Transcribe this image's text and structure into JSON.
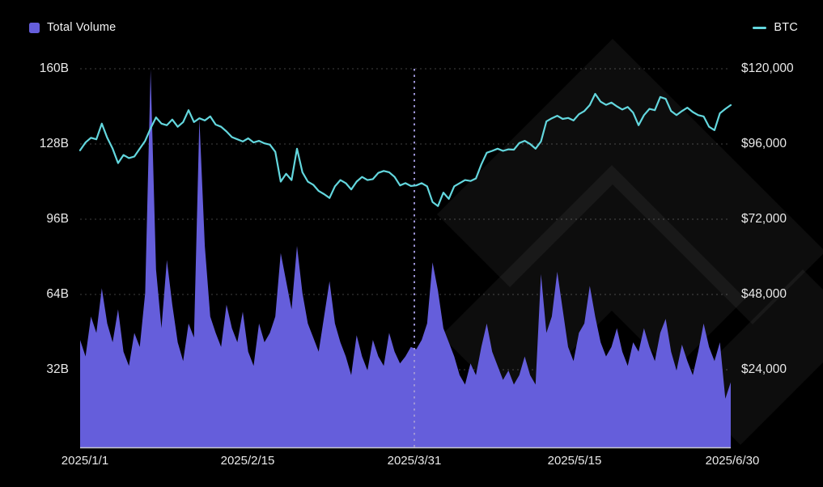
{
  "legend": {
    "volume_label": "Total Volume",
    "btc_label": "BTC"
  },
  "colors": {
    "background": "#000000",
    "volume_fill": "#655EDB",
    "btc_line": "#63D7DE",
    "grid": "rgba(255,255,255,0.26)",
    "marker_line": "#9D94D6",
    "axis_label": "#E9E9E9",
    "baseline": "#C9C9CF",
    "watermark": "rgba(255,255,255,0.05)"
  },
  "watermark": {
    "present": true,
    "description": "diagonal-chevron-logo"
  },
  "chart_data": {
    "type": "mixed",
    "title": "",
    "grid": true,
    "legend_position": "top",
    "x_range": [
      "2025/1/1",
      "2025/6/30"
    ],
    "x_tick_labels": [
      "2025/1/1",
      "2025/2/15",
      "2025/3/31",
      "2025/5/15",
      "2025/6/30"
    ],
    "sampling": "121 points, approx 1.5-day intervals from 2025/1/1 to 2025/6/30",
    "marker": {
      "x_label": "2025/3/31",
      "style": "dotted-vertical-line"
    },
    "left_axis": {
      "series": "Total Volume",
      "unit": "billions USD",
      "ticks": [
        "160B",
        "128B",
        "96B",
        "64B",
        "32B"
      ],
      "tick_values": [
        160,
        128,
        96,
        64,
        32
      ],
      "min": 0,
      "max": 160
    },
    "right_axis": {
      "series": "BTC",
      "unit": "USD",
      "ticks": [
        "$120,000",
        "$96,000",
        "$72,000",
        "$48,000",
        "$24,000"
      ],
      "tick_values": [
        120000,
        96000,
        72000,
        48000,
        24000
      ],
      "min": 0,
      "max": 120000
    },
    "series": [
      {
        "name": "Total Volume",
        "type": "area",
        "axis": "left",
        "unit": "B",
        "values": [
          45,
          38,
          55,
          48,
          67,
          52,
          44,
          58,
          40,
          34,
          48,
          42,
          65,
          160,
          75,
          50,
          79,
          60,
          44,
          36,
          52,
          46,
          139,
          85,
          55,
          48,
          42,
          60,
          50,
          44,
          57,
          40,
          34,
          52,
          44,
          48,
          55,
          82,
          70,
          58,
          85,
          65,
          52,
          46,
          40,
          55,
          70,
          52,
          44,
          38,
          30,
          47,
          38,
          32,
          45,
          38,
          34,
          48,
          40,
          35,
          38,
          42,
          41,
          45,
          52,
          78,
          66,
          50,
          44,
          38,
          30,
          26,
          35,
          30,
          42,
          52,
          40,
          34,
          28,
          32,
          26,
          30,
          38,
          30,
          26,
          73,
          48,
          55,
          74,
          58,
          42,
          36,
          48,
          52,
          68,
          55,
          44,
          38,
          42,
          50,
          40,
          34,
          44,
          40,
          50,
          42,
          36,
          48,
          54,
          40,
          32,
          43,
          36,
          30,
          40,
          52,
          42,
          36,
          44,
          20,
          27
        ]
      },
      {
        "name": "BTC",
        "type": "line",
        "axis": "right",
        "unit": "$",
        "values": [
          94000,
          96500,
          98000,
          97500,
          102500,
          98000,
          94500,
          89900,
          92500,
          91500,
          92000,
          94500,
          97000,
          101000,
          104500,
          102500,
          102000,
          103800,
          101500,
          103000,
          106800,
          103000,
          104200,
          103500,
          104800,
          102200,
          101500,
          100000,
          98200,
          97500,
          96800,
          97800,
          96500,
          97000,
          96200,
          95800,
          93500,
          84000,
          86500,
          84500,
          94500,
          87000,
          84000,
          83000,
          81000,
          80000,
          78800,
          82500,
          84500,
          83500,
          81500,
          84000,
          85500,
          84500,
          84800,
          86800,
          87400,
          87000,
          85500,
          82800,
          83500,
          82600,
          82800,
          83500,
          82500,
          77500,
          76200,
          80500,
          78500,
          82500,
          83500,
          84500,
          84200,
          85000,
          89500,
          93200,
          93800,
          94500,
          93800,
          94300,
          94200,
          96300,
          97000,
          96000,
          94500,
          96800,
          103200,
          104200,
          105000,
          104000,
          104300,
          103500,
          105500,
          106500,
          108400,
          112000,
          109500,
          108500,
          109200,
          108000,
          107000,
          107800,
          106000,
          102000,
          105200,
          107200,
          106800,
          111000,
          110400,
          106500,
          105200,
          106500,
          107600,
          106200,
          105200,
          104800,
          101500,
          100400,
          105800,
          107200,
          108400
        ]
      }
    ]
  }
}
